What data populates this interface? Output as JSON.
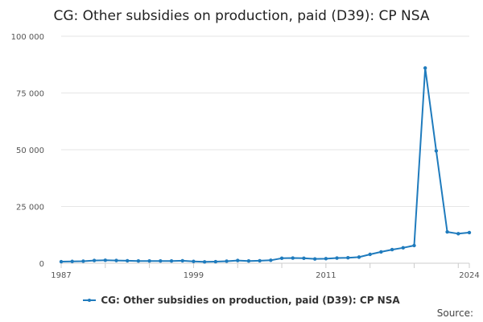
{
  "chart_data": {
    "type": "line",
    "title": "CG: Other subsidies on production, paid (D39): CP NSA",
    "xlabel": "",
    "ylabel": "",
    "ylim": [
      0,
      100000
    ],
    "xlim": [
      1987,
      2024
    ],
    "y_ticks": [
      0,
      25000,
      50000,
      75000,
      100000
    ],
    "y_tick_labels": [
      "0",
      "25 000",
      "50 000",
      "75 000",
      "100 000"
    ],
    "x_ticks": [
      1987,
      1999,
      2011,
      2024
    ],
    "x_tick_labels": [
      "1987",
      "1999",
      "2011",
      "2024"
    ],
    "grid": true,
    "legend_position": "bottom",
    "colors": {
      "series": "#1f7bbd",
      "grid": "#e6e6e6",
      "axis": "#cccccc"
    },
    "series": [
      {
        "name": "CG: Other subsidies on production, paid (D39): CP NSA",
        "x": [
          1987,
          1988,
          1989,
          1990,
          1991,
          1992,
          1993,
          1994,
          1995,
          1996,
          1997,
          1998,
          1999,
          2000,
          2001,
          2002,
          2003,
          2004,
          2005,
          2006,
          2007,
          2008,
          2009,
          2010,
          2011,
          2012,
          2013,
          2014,
          2015,
          2016,
          2017,
          2018,
          2019,
          2020,
          2021,
          2022,
          2023,
          2024
        ],
        "values": [
          700,
          800,
          900,
          1200,
          1300,
          1200,
          1100,
          1000,
          1000,
          1000,
          1000,
          1100,
          800,
          600,
          700,
          900,
          1200,
          1000,
          1100,
          1300,
          2200,
          2300,
          2200,
          1900,
          2000,
          2300,
          2400,
          2700,
          3900,
          5000,
          6000,
          6800,
          7800,
          86000,
          49500,
          13800,
          13000,
          13500
        ]
      }
    ]
  },
  "source": {
    "label": "Source:"
  }
}
